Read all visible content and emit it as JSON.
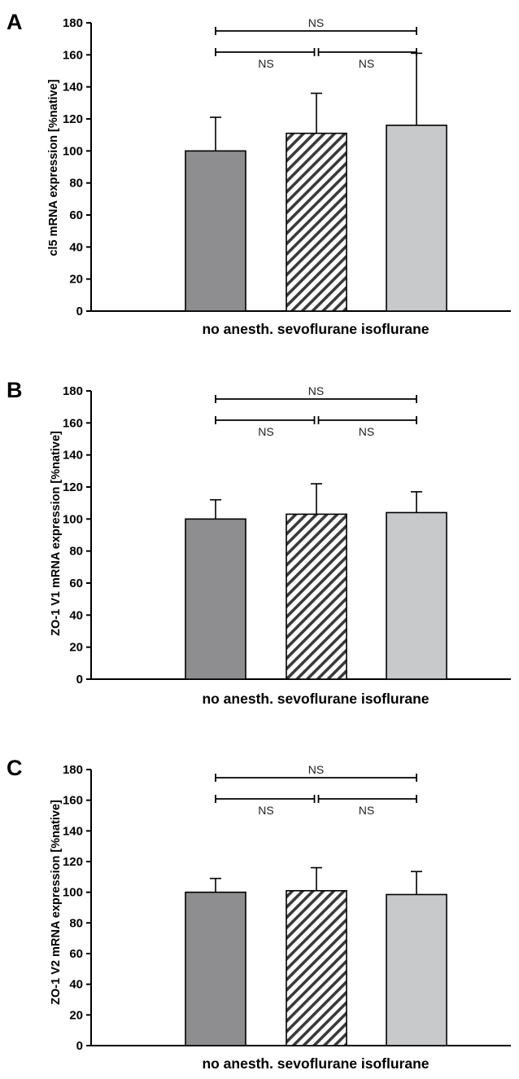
{
  "chart_data": [
    {
      "type": "bar",
      "panel": "A",
      "categories": [
        "no anesth.",
        "sevoflurane",
        "isoflurane"
      ],
      "xlabel": "no anesth. sevoflurane isoflurane",
      "ylabel": "cl5 mRNA expression [%native]",
      "ylim": [
        0,
        180
      ],
      "yticks": [
        0,
        20,
        40,
        60,
        80,
        100,
        120,
        140,
        160,
        180
      ],
      "values": [
        100,
        111,
        116
      ],
      "errors": [
        21,
        25,
        45
      ],
      "bar_colors": [
        "#8e8e90",
        "hatched",
        "#c8c9cb"
      ],
      "significance": [
        {
          "from": 0,
          "to": 2,
          "label": "NS"
        },
        {
          "from": 0,
          "to": 1,
          "label": "NS"
        },
        {
          "from": 1,
          "to": 2,
          "label": "NS"
        }
      ],
      "grid": false
    },
    {
      "type": "bar",
      "panel": "B",
      "categories": [
        "no anesth.",
        "sevoflurane",
        "isoflurane"
      ],
      "xlabel": "no anesth. sevoflurane isoflurane",
      "ylabel": "ZO-1 V1 mRNA expression [%native]",
      "ylim": [
        0,
        180
      ],
      "yticks": [
        0,
        20,
        40,
        60,
        80,
        100,
        120,
        140,
        160,
        180
      ],
      "values": [
        100,
        103,
        104
      ],
      "errors": [
        12,
        19,
        13
      ],
      "bar_colors": [
        "#8e8e90",
        "hatched",
        "#c8c9cb"
      ],
      "significance": [
        {
          "from": 0,
          "to": 2,
          "label": "NS"
        },
        {
          "from": 0,
          "to": 1,
          "label": "NS"
        },
        {
          "from": 1,
          "to": 2,
          "label": "NS"
        }
      ],
      "grid": false
    },
    {
      "type": "bar",
      "panel": "C",
      "categories": [
        "no anesth.",
        "sevoflurane",
        "isoflurane"
      ],
      "xlabel": "no anesth. sevoflurane isoflurane",
      "ylabel": "ZO-1 V2 mRNA expression [%native]",
      "ylim": [
        0,
        180
      ],
      "yticks": [
        0,
        20,
        40,
        60,
        80,
        100,
        120,
        140,
        160,
        180
      ],
      "values": [
        100,
        101,
        98.5
      ],
      "errors": [
        9,
        15,
        15
      ],
      "bar_colors": [
        "#8e8e90",
        "hatched",
        "#c8c9cb"
      ],
      "significance": [
        {
          "from": 0,
          "to": 2,
          "label": "NS"
        },
        {
          "from": 0,
          "to": 1,
          "label": "NS"
        },
        {
          "from": 1,
          "to": 2,
          "label": "NS"
        }
      ],
      "grid": false
    }
  ]
}
